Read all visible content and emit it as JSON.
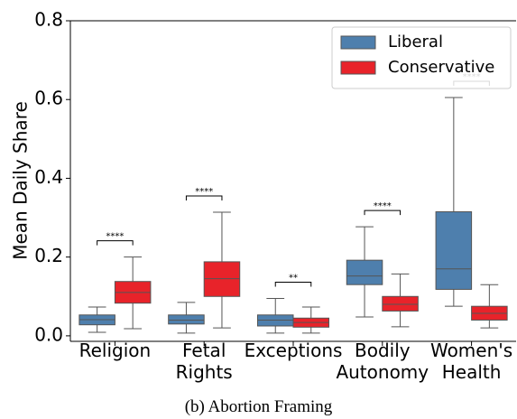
{
  "chart_data": {
    "type": "box",
    "title": "(b) Abortion Framing",
    "ylabel": "Mean Daily Share",
    "categories": [
      "Religion",
      "Fetal\nRights",
      "Exceptions",
      "Bodily\nAutonomy",
      "Women's\nHealth"
    ],
    "series": [
      {
        "name": "Liberal",
        "color": "#4e7fad",
        "values": [
          {
            "whislo": 0.009,
            "q1": 0.028,
            "med": 0.041,
            "q3": 0.053,
            "whishi": 0.073
          },
          {
            "whislo": 0.007,
            "q1": 0.03,
            "med": 0.04,
            "q3": 0.053,
            "whishi": 0.085
          },
          {
            "whislo": 0.007,
            "q1": 0.025,
            "med": 0.04,
            "q3": 0.053,
            "whishi": 0.095
          },
          {
            "whislo": 0.048,
            "q1": 0.13,
            "med": 0.152,
            "q3": 0.192,
            "whishi": 0.277
          },
          {
            "whislo": 0.075,
            "q1": 0.118,
            "med": 0.17,
            "q3": 0.315,
            "whishi": 0.605
          }
        ]
      },
      {
        "name": "Conservative",
        "color": "#e8232a",
        "values": [
          {
            "whislo": 0.018,
            "q1": 0.083,
            "med": 0.11,
            "q3": 0.138,
            "whishi": 0.2
          },
          {
            "whislo": 0.02,
            "q1": 0.1,
            "med": 0.145,
            "q3": 0.188,
            "whishi": 0.314
          },
          {
            "whislo": 0.007,
            "q1": 0.022,
            "med": 0.034,
            "q3": 0.045,
            "whishi": 0.073
          },
          {
            "whislo": 0.023,
            "q1": 0.063,
            "med": 0.08,
            "q3": 0.1,
            "whishi": 0.157
          },
          {
            "whislo": 0.02,
            "q1": 0.04,
            "med": 0.057,
            "q3": 0.075,
            "whishi": 0.13
          }
        ]
      }
    ],
    "annotations": [
      "****",
      "****",
      "**",
      "****",
      "****"
    ],
    "ylim": [
      -0.014,
      0.8
    ],
    "yticks": [
      {
        "value": 0,
        "label": "0.0"
      },
      0.2,
      0.4,
      0.6,
      0.8
    ],
    "legend": "upper right"
  }
}
